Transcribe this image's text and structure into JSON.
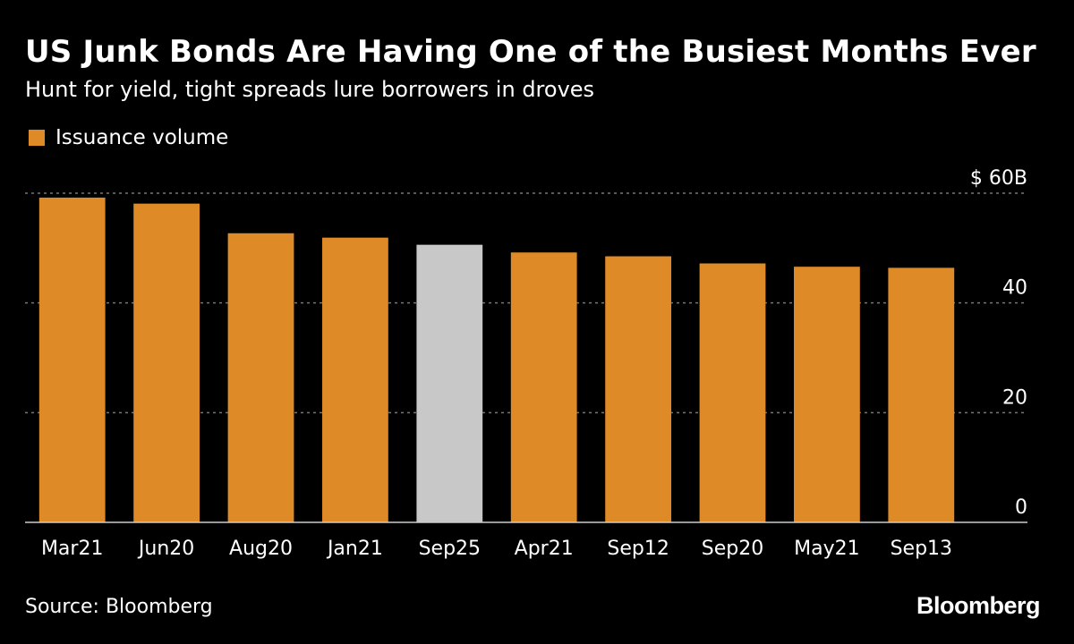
{
  "chart_data": {
    "type": "bar",
    "title": "US Junk Bonds Are Having One of the Busiest Months Ever",
    "subtitle": "Hunt for yield, tight spreads lure borrowers in droves",
    "legend": [
      "Issuance volume"
    ],
    "legend_placement": "top-left",
    "categories": [
      "Mar21",
      "Jun20",
      "Aug20",
      "Jan21",
      "Sep25",
      "Apr21",
      "Sep12",
      "Sep20",
      "May21",
      "Sep13"
    ],
    "series": [
      {
        "name": "Issuance volume",
        "values": [
          59.2,
          58.1,
          52.7,
          51.9,
          50.6,
          49.2,
          48.5,
          47.2,
          46.6,
          46.4
        ]
      }
    ],
    "highlight_category": "Sep25",
    "ylim": [
      0,
      60
    ],
    "yticks": [
      {
        "value": 0,
        "label": "0"
      },
      {
        "value": 20,
        "label": "20"
      },
      {
        "value": 40,
        "label": "40"
      },
      {
        "value": 60,
        "label": "$ 60B"
      }
    ],
    "grid": true,
    "y_axis_side": "right"
  },
  "colors": {
    "bar": "#de8a26",
    "highlight_bar": "#c8c8c8",
    "grid": "#777777",
    "baseline": "#cccccc"
  },
  "footer": {
    "source": "Source: Bloomberg",
    "brand": "Bloomberg"
  }
}
